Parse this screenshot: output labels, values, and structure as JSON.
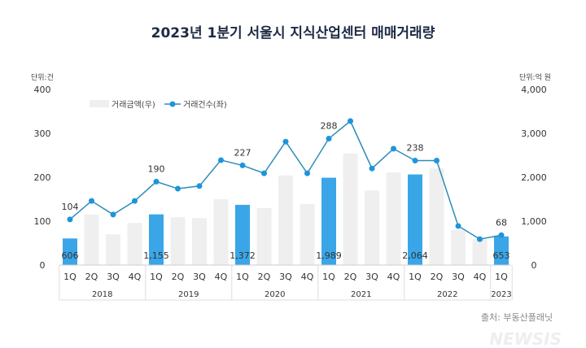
{
  "chart_data": {
    "type": "bar+line",
    "title": "2023년 1분기 서울시 지식산업센터 매매거래량",
    "left_unit": "단위:건",
    "right_unit": "단위:억 원",
    "left_ylim": [
      0,
      400
    ],
    "left_ticks": [
      "0",
      "100",
      "200",
      "300",
      "400"
    ],
    "right_ylim": [
      0,
      4000
    ],
    "right_ticks": [
      "0",
      "1,000",
      "2,000",
      "3,000",
      "4,000"
    ],
    "categories": [
      "1Q",
      "2Q",
      "3Q",
      "4Q",
      "1Q",
      "2Q",
      "3Q",
      "4Q",
      "1Q",
      "2Q",
      "3Q",
      "4Q",
      "1Q",
      "2Q",
      "3Q",
      "4Q",
      "1Q",
      "2Q",
      "3Q",
      "4Q",
      "1Q"
    ],
    "years": [
      "2018",
      "2019",
      "2020",
      "2021",
      "2022",
      "2023"
    ],
    "legend": {
      "placement": "top-left",
      "bar_label": "거래금액(우)",
      "line_label": "거래건수(좌)"
    },
    "series": [
      {
        "name": "거래금액(우)",
        "axis": "right",
        "type": "bar",
        "values": [
          606,
          1150,
          700,
          960,
          1155,
          1090,
          1070,
          1500,
          1372,
          1300,
          2040,
          1390,
          1989,
          2540,
          1700,
          2110,
          2064,
          2200,
          800,
          590,
          653
        ],
        "highlighted": [
          true,
          false,
          false,
          false,
          true,
          false,
          false,
          false,
          true,
          false,
          false,
          false,
          true,
          false,
          false,
          false,
          true,
          false,
          false,
          false,
          true
        ],
        "data_labels": [
          "606",
          "",
          "",
          "",
          "1,155",
          "",
          "",
          "",
          "1,372",
          "",
          "",
          "",
          "1,989",
          "",
          "",
          "",
          "2,064",
          "",
          "",
          "",
          "653"
        ]
      },
      {
        "name": "거래건수(좌)",
        "axis": "left",
        "type": "line",
        "values": [
          104,
          146,
          115,
          146,
          190,
          174,
          180,
          239,
          227,
          209,
          281,
          209,
          288,
          328,
          220,
          265,
          238,
          238,
          89,
          59,
          68
        ],
        "data_labels": [
          "104",
          "",
          "",
          "",
          "190",
          "",
          "",
          "",
          "227",
          "",
          "",
          "",
          "288",
          "",
          "",
          "",
          "238",
          "",
          "",
          "",
          "68"
        ]
      }
    ],
    "colors": {
      "highlight_bar": "#3aa6e8",
      "bar": "#efefef",
      "line": "#2e8cb8",
      "marker": "#1d95dc",
      "title": "#1d2a44"
    },
    "grid": false
  },
  "source": "출처: 부동산플래닛",
  "watermark": "NEWSIS"
}
